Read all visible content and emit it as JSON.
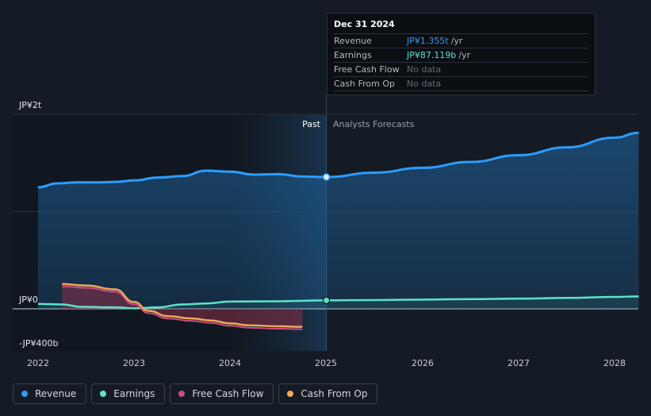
{
  "chart_data": {
    "type": "area",
    "title": "",
    "x_ticks": [
      "2022",
      "2023",
      "2024",
      "2025",
      "2026",
      "2027",
      "2028"
    ],
    "y_ticks": [
      "JP¥2t",
      "JP¥0",
      "-JP¥400b"
    ],
    "ylim": [
      -400,
      2000
    ],
    "units": "JP¥ billions",
    "regions": {
      "past_label": "Past",
      "forecast_label": "Analysts Forecasts",
      "divider_x": 2025.0
    },
    "series": [
      {
        "name": "Revenue",
        "color": "#2d9cff",
        "x": [
          2022.0,
          2022.2,
          2022.4,
          2022.6,
          2022.8,
          2023.0,
          2023.25,
          2023.5,
          2023.75,
          2024.0,
          2024.25,
          2024.5,
          2024.75,
          2025.0,
          2025.5,
          2026.0,
          2026.5,
          2027.0,
          2027.5,
          2028.0,
          2028.25
        ],
        "y": [
          1250,
          1290,
          1300,
          1300,
          1305,
          1320,
          1350,
          1365,
          1420,
          1410,
          1380,
          1385,
          1360,
          1355,
          1400,
          1450,
          1510,
          1580,
          1660,
          1760,
          1810
        ]
      },
      {
        "name": "Earnings",
        "color": "#5de3c9",
        "x": [
          2022.0,
          2022.25,
          2022.45,
          2022.8,
          2023.0,
          2023.25,
          2023.5,
          2023.75,
          2024.0,
          2024.5,
          2025.0,
          2025.5,
          2026.0,
          2026.5,
          2027.0,
          2027.5,
          2028.0,
          2028.25
        ],
        "y": [
          50,
          45,
          20,
          15,
          5,
          15,
          45,
          55,
          75,
          78,
          87.119,
          90,
          95,
          100,
          105,
          112,
          122,
          128
        ]
      },
      {
        "name": "Free Cash Flow",
        "color": "#c94f7e",
        "x": [],
        "y": []
      },
      {
        "name": "Cash From Op",
        "color": "#f0a85a",
        "x": [
          2022.25,
          2022.5,
          2022.8,
          2023.0,
          2023.15,
          2023.35,
          2023.6,
          2023.8,
          2024.0,
          2024.2,
          2024.5,
          2024.75
        ],
        "y": [
          255,
          240,
          200,
          70,
          -20,
          -75,
          -100,
          -120,
          -150,
          -170,
          -180,
          -185
        ]
      }
    ],
    "highlight": {
      "x": 2025.0,
      "revenue": 1355,
      "earnings": 87.119
    }
  },
  "tooltip": {
    "date": "Dec 31 2024",
    "rows": [
      {
        "label": "Revenue",
        "value": "JP¥1.355t",
        "unit": "/yr"
      },
      {
        "label": "Earnings",
        "value": "JP¥87.119b",
        "unit": "/yr"
      },
      {
        "label": "Free Cash Flow",
        "value": "No data"
      },
      {
        "label": "Cash From Op",
        "value": "No data"
      }
    ]
  },
  "legend": [
    {
      "label": "Revenue",
      "color": "#2d9cff"
    },
    {
      "label": "Earnings",
      "color": "#5de3c9"
    },
    {
      "label": "Free Cash Flow",
      "color": "#c94f7e"
    },
    {
      "label": "Cash From Op",
      "color": "#f0a85a"
    }
  ]
}
